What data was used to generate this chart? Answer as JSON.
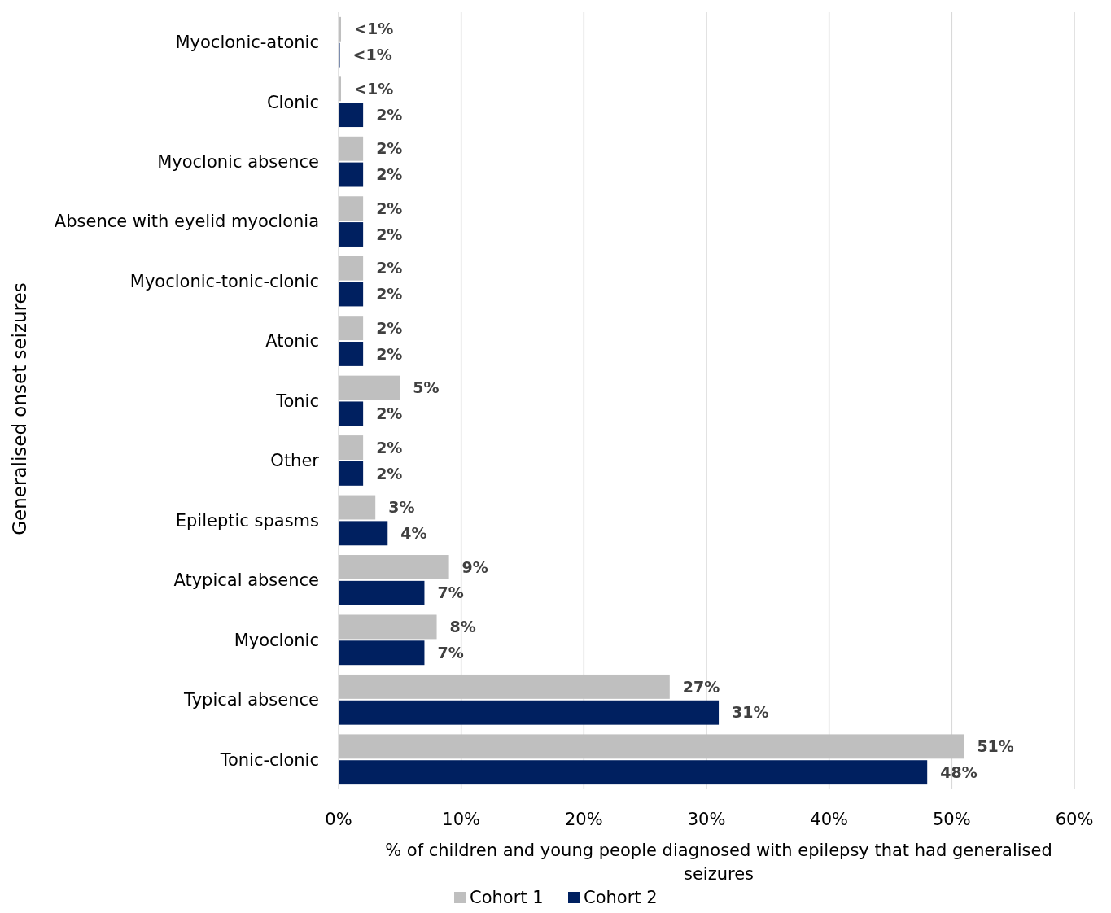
{
  "chart_data": {
    "type": "bar",
    "orientation": "horizontal",
    "ylabel": "Generalised onset seizures",
    "xlabel": "% of children and young people diagnosed with epilepsy that had generalised seizures",
    "categories": [
      "Myoclonic-atonic",
      "Clonic",
      "Myoclonic absence",
      "Absence with eyelid myoclonia",
      "Myoclonic-tonic-clonic",
      "Atonic",
      "Tonic",
      "Other",
      "Epileptic spasms",
      "Atypical absence",
      "Myoclonic",
      "Typical absence",
      "Tonic-clonic"
    ],
    "series": [
      {
        "name": "Cohort 1",
        "color": "#bfbfbf",
        "values": [
          0.2,
          0.2,
          2,
          2,
          2,
          2,
          5,
          2,
          3,
          9,
          8,
          27,
          51
        ],
        "value_labels": [
          "<1%",
          "<1%",
          "2%",
          "2%",
          "2%",
          "2%",
          "5%",
          "2%",
          "3%",
          "9%",
          "8%",
          "27%",
          "51%"
        ]
      },
      {
        "name": "Cohort 2",
        "color": "#002060",
        "values": [
          0.1,
          2,
          2,
          2,
          2,
          2,
          2,
          2,
          4,
          7,
          7,
          31,
          48
        ],
        "value_labels": [
          "<1%",
          "2%",
          "2%",
          "2%",
          "2%",
          "2%",
          "2%",
          "2%",
          "4%",
          "7%",
          "7%",
          "31%",
          "48%"
        ]
      }
    ],
    "xlim": [
      0,
      60
    ],
    "xticks": [
      {
        "value": 0,
        "label": "0%"
      },
      {
        "value": 10,
        "label": "10%"
      },
      {
        "value": 20,
        "label": "20%"
      },
      {
        "value": 30,
        "label": "30%"
      },
      {
        "value": 40,
        "label": "40%"
      },
      {
        "value": 50,
        "label": "50%"
      },
      {
        "value": 60,
        "label": "60%"
      }
    ],
    "grid": "x",
    "legend": "bottom"
  }
}
